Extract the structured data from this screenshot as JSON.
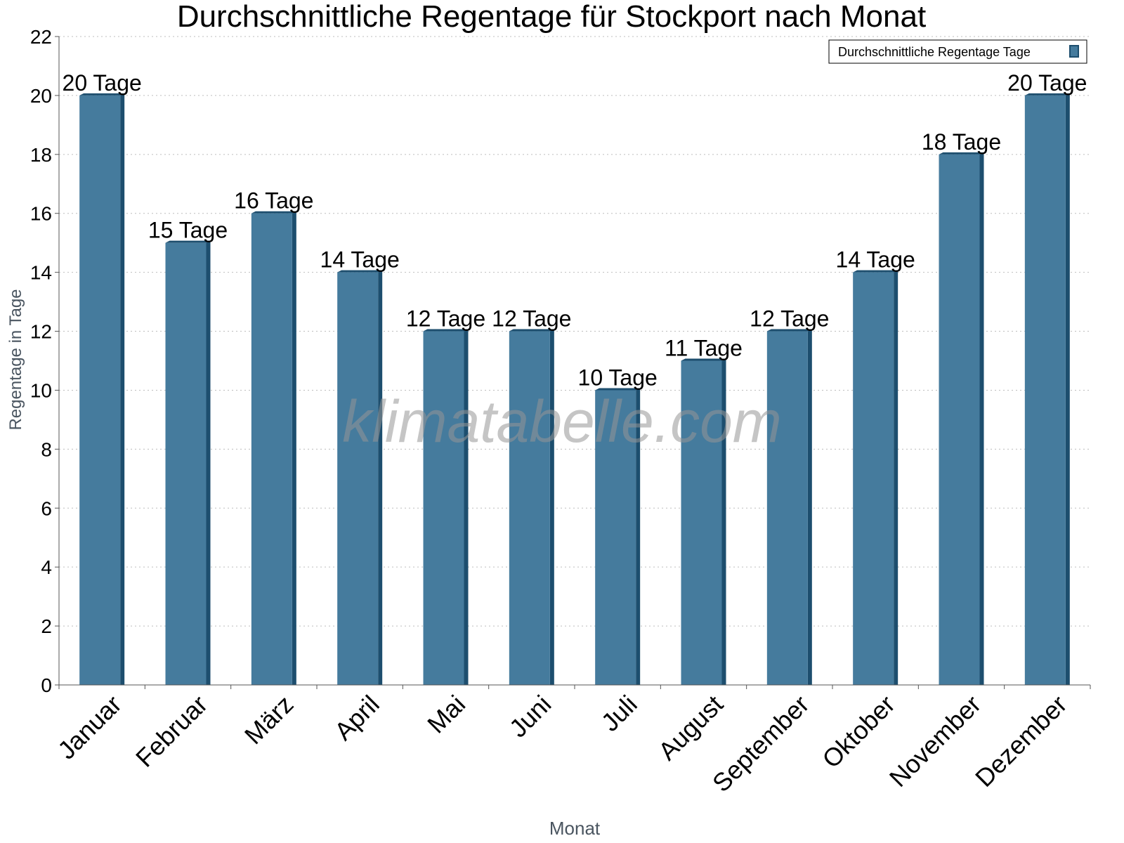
{
  "chart_data": {
    "type": "bar",
    "title": "Durchschnittliche Regentage für Stockport nach Monat",
    "xlabel": "Monat",
    "ylabel": "Regentage in Tage",
    "ylim": [
      0,
      22
    ],
    "yticks": [
      0,
      2,
      4,
      6,
      8,
      10,
      12,
      14,
      16,
      18,
      20,
      22
    ],
    "grid": true,
    "legend_position": "top-right",
    "categories": [
      "Januar",
      "Februar",
      "März",
      "April",
      "Mai",
      "Juni",
      "Juli",
      "August",
      "September",
      "Oktober",
      "November",
      "Dezember"
    ],
    "series": [
      {
        "name": "Durchschnittliche Regentage Tage",
        "values": [
          20,
          15,
          16,
          14,
          12,
          12,
          10,
          11,
          12,
          14,
          18,
          20
        ],
        "labels": [
          "20 Tage",
          "15 Tage",
          "16 Tage",
          "14 Tage",
          "12 Tage",
          "12 Tage",
          "10 Tage",
          "11 Tage",
          "12 Tage",
          "14 Tage",
          "18 Tage",
          "20 Tage"
        ],
        "color": "#457b9d",
        "shade_color": "#1d4e6e"
      }
    ]
  },
  "watermark": "klimatabelle.com"
}
